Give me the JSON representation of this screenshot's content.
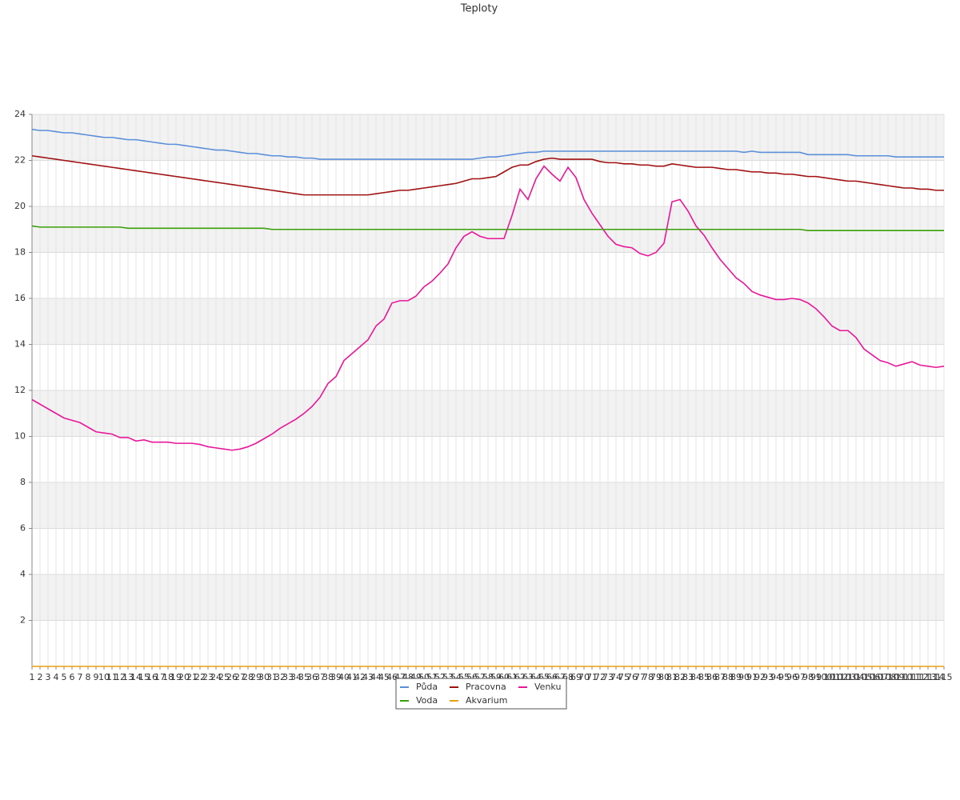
{
  "chart_data": {
    "type": "line",
    "title": "Teploty",
    "categories": [
      "1",
      "2",
      "3",
      "4",
      "5",
      "6",
      "7",
      "8",
      "9",
      "10",
      "11",
      "12",
      "13",
      "14",
      "15",
      "16",
      "17",
      "18",
      "19",
      "20",
      "21",
      "22",
      "23",
      "24",
      "25",
      "26",
      "27",
      "28",
      "29",
      "30",
      "31",
      "32",
      "33",
      "34",
      "35",
      "36",
      "37",
      "38",
      "39",
      "40",
      "41",
      "42",
      "43",
      "44",
      "45",
      "46",
      "47",
      "48",
      "49",
      "50",
      "51",
      "52",
      "53",
      "54",
      "55",
      "56",
      "57",
      "58",
      "59",
      "60",
      "61",
      "62",
      "63",
      "64",
      "65",
      "66",
      "67",
      "68",
      "69",
      "70",
      "71",
      "72",
      "73",
      "74",
      "75",
      "76",
      "77",
      "78",
      "79",
      "80",
      "81",
      "82",
      "83",
      "84",
      "85",
      "86",
      "87",
      "88",
      "89",
      "90",
      "91",
      "92",
      "93",
      "94",
      "95",
      "96",
      "97",
      "98",
      "99",
      "100",
      "101",
      "102",
      "103",
      "104",
      "105",
      "106",
      "107",
      "108",
      "109",
      "110",
      "111",
      "112",
      "113",
      "114",
      "115"
    ],
    "ylim": [
      0,
      24
    ],
    "yticks": [
      2,
      4,
      6,
      8,
      10,
      12,
      14,
      16,
      18,
      20,
      22,
      24
    ],
    "grid": true,
    "series": [
      {
        "name": "Půda",
        "color": "#5b8fd9",
        "values": [
          23.35,
          23.3,
          23.3,
          23.25,
          23.2,
          23.2,
          23.15,
          23.1,
          23.05,
          23.0,
          23.0,
          22.95,
          22.9,
          22.9,
          22.85,
          22.8,
          22.75,
          22.7,
          22.7,
          22.65,
          22.6,
          22.55,
          22.5,
          22.45,
          22.45,
          22.4,
          22.35,
          22.3,
          22.3,
          22.25,
          22.2,
          22.2,
          22.15,
          22.15,
          22.1,
          22.1,
          22.05,
          22.05,
          22.05,
          22.05,
          22.05,
          22.05,
          22.05,
          22.05,
          22.05,
          22.05,
          22.05,
          22.05,
          22.05,
          22.05,
          22.05,
          22.05,
          22.05,
          22.05,
          22.05,
          22.05,
          22.1,
          22.15,
          22.15,
          22.2,
          22.25,
          22.3,
          22.35,
          22.35,
          22.4,
          22.4,
          22.4,
          22.4,
          22.4,
          22.4,
          22.4,
          22.4,
          22.4,
          22.4,
          22.4,
          22.4,
          22.4,
          22.4,
          22.4,
          22.4,
          22.4,
          22.4,
          22.4,
          22.4,
          22.4,
          22.4,
          22.4,
          22.4,
          22.4,
          22.35,
          22.4,
          22.35,
          22.35,
          22.35,
          22.35,
          22.35,
          22.35,
          22.25,
          22.25,
          22.25,
          22.25,
          22.25,
          22.25,
          22.2,
          22.2,
          22.2,
          22.2,
          22.2,
          22.15,
          22.15,
          22.15,
          22.15,
          22.15,
          22.15,
          22.15
        ]
      },
      {
        "name": "Pracovna",
        "color": "#a01010",
        "values": [
          22.2,
          22.15,
          22.1,
          22.05,
          22.0,
          21.95,
          21.9,
          21.85,
          21.8,
          21.75,
          21.7,
          21.65,
          21.6,
          21.55,
          21.5,
          21.45,
          21.4,
          21.35,
          21.3,
          21.25,
          21.2,
          21.15,
          21.1,
          21.05,
          21.0,
          20.95,
          20.9,
          20.85,
          20.8,
          20.75,
          20.7,
          20.65,
          20.6,
          20.55,
          20.5,
          20.5,
          20.5,
          20.5,
          20.5,
          20.5,
          20.5,
          20.5,
          20.5,
          20.55,
          20.6,
          20.65,
          20.7,
          20.7,
          20.75,
          20.8,
          20.85,
          20.9,
          20.95,
          21.0,
          21.1,
          21.2,
          21.2,
          21.25,
          21.3,
          21.5,
          21.7,
          21.8,
          21.8,
          21.95,
          22.05,
          22.1,
          22.05,
          22.05,
          22.05,
          22.05,
          22.05,
          21.95,
          21.9,
          21.9,
          21.85,
          21.85,
          21.8,
          21.8,
          21.75,
          21.75,
          21.85,
          21.8,
          21.75,
          21.7,
          21.7,
          21.7,
          21.65,
          21.6,
          21.6,
          21.55,
          21.5,
          21.5,
          21.45,
          21.45,
          21.4,
          21.4,
          21.35,
          21.3,
          21.3,
          21.25,
          21.2,
          21.15,
          21.1,
          21.1,
          21.05,
          21.0,
          20.95,
          20.9,
          20.85,
          20.8,
          20.8,
          20.75,
          20.75,
          20.7,
          20.7
        ]
      },
      {
        "name": "Venku",
        "color": "#e8179a",
        "values": [
          11.6,
          11.4,
          11.2,
          11.0,
          10.8,
          10.7,
          10.6,
          10.4,
          10.2,
          10.15,
          10.1,
          9.95,
          9.95,
          9.8,
          9.85,
          9.75,
          9.75,
          9.75,
          9.7,
          9.7,
          9.7,
          9.65,
          9.55,
          9.5,
          9.45,
          9.4,
          9.45,
          9.55,
          9.7,
          9.9,
          10.1,
          10.35,
          10.55,
          10.75,
          11.0,
          11.3,
          11.7,
          12.3,
          12.6,
          13.3,
          13.6,
          13.9,
          14.2,
          14.8,
          15.1,
          15.8,
          15.9,
          15.9,
          16.1,
          16.5,
          16.75,
          17.1,
          17.5,
          18.2,
          18.7,
          18.9,
          18.7,
          18.6,
          18.6,
          18.6,
          19.6,
          20.75,
          20.3,
          21.2,
          21.75,
          21.4,
          21.1,
          21.7,
          21.25,
          20.3,
          19.7,
          19.2,
          18.7,
          18.35,
          18.25,
          18.2,
          17.95,
          17.85,
          18.0,
          18.4,
          20.2,
          20.3,
          19.8,
          19.15,
          18.75,
          18.2,
          17.7,
          17.3,
          16.9,
          16.65,
          16.3,
          16.15,
          16.05,
          15.95,
          15.95,
          16.0,
          15.95,
          15.8,
          15.55,
          15.2,
          14.8,
          14.6,
          14.6,
          14.3,
          13.8,
          13.55,
          13.3,
          13.2,
          13.05,
          13.15,
          13.25,
          13.1,
          13.05,
          13.0,
          13.05
        ]
      },
      {
        "name": "Voda",
        "color": "#3aa00a",
        "values": [
          19.15,
          19.1,
          19.1,
          19.1,
          19.1,
          19.1,
          19.1,
          19.1,
          19.1,
          19.1,
          19.1,
          19.1,
          19.05,
          19.05,
          19.05,
          19.05,
          19.05,
          19.05,
          19.05,
          19.05,
          19.05,
          19.05,
          19.05,
          19.05,
          19.05,
          19.05,
          19.05,
          19.05,
          19.05,
          19.05,
          19.0,
          19.0,
          19.0,
          19.0,
          19.0,
          19.0,
          19.0,
          19.0,
          19.0,
          19.0,
          19.0,
          19.0,
          19.0,
          19.0,
          19.0,
          19.0,
          19.0,
          19.0,
          19.0,
          19.0,
          19.0,
          19.0,
          19.0,
          19.0,
          19.0,
          19.0,
          19.0,
          19.0,
          19.0,
          19.0,
          19.0,
          19.0,
          19.0,
          19.0,
          19.0,
          19.0,
          19.0,
          19.0,
          19.0,
          19.0,
          19.0,
          19.0,
          19.0,
          19.0,
          19.0,
          19.0,
          19.0,
          19.0,
          19.0,
          19.0,
          19.0,
          19.0,
          19.0,
          19.0,
          19.0,
          19.0,
          19.0,
          19.0,
          19.0,
          19.0,
          19.0,
          19.0,
          19.0,
          19.0,
          19.0,
          19.0,
          19.0,
          18.95,
          18.95,
          18.95,
          18.95,
          18.95,
          18.95,
          18.95,
          18.95,
          18.95,
          18.95,
          18.95,
          18.95,
          18.95,
          18.95,
          18.95,
          18.95,
          18.95,
          18.95
        ]
      },
      {
        "name": "Akvarium",
        "color": "#e8a010",
        "values": [
          0,
          0,
          0,
          0,
          0,
          0,
          0,
          0,
          0,
          0,
          0,
          0,
          0,
          0,
          0,
          0,
          0,
          0,
          0,
          0,
          0,
          0,
          0,
          0,
          0,
          0,
          0,
          0,
          0,
          0,
          0,
          0,
          0,
          0,
          0,
          0,
          0,
          0,
          0,
          0,
          0,
          0,
          0,
          0,
          0,
          0,
          0,
          0,
          0,
          0,
          0,
          0,
          0,
          0,
          0,
          0,
          0,
          0,
          0,
          0,
          0,
          0,
          0,
          0,
          0,
          0,
          0,
          0,
          0,
          0,
          0,
          0,
          0,
          0,
          0,
          0,
          0,
          0,
          0,
          0,
          0,
          0,
          0,
          0,
          0,
          0,
          0,
          0,
          0,
          0,
          0,
          0,
          0,
          0,
          0,
          0,
          0,
          0,
          0,
          0,
          0,
          0,
          0,
          0,
          0,
          0,
          0,
          0,
          0,
          0,
          0,
          0,
          0,
          0,
          0
        ]
      }
    ]
  }
}
